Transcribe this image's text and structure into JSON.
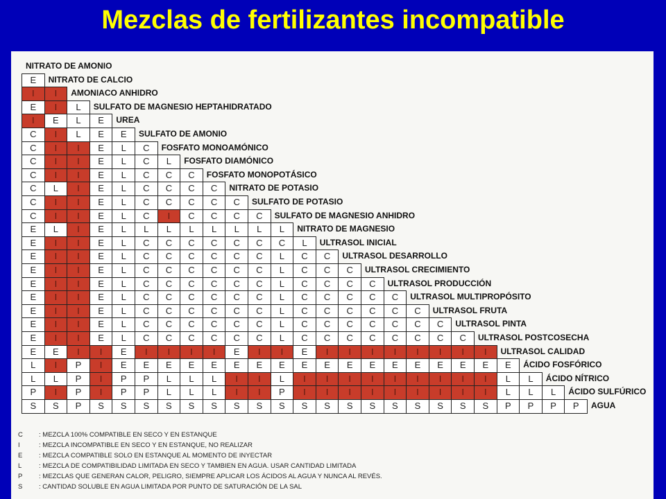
{
  "title": "Mezclas de fertilizantes incompatible",
  "labels": [
    "NITRATO DE AMONIO",
    "NITRATO DE CALCIO",
    "AMONIACO ANHIDRO",
    "SULFATO DE MAGNESIO HEPTAHIDRATADO",
    "UREA",
    "SULFATO DE AMONIO",
    "FOSFATO MONOAMÓNICO",
    "FOSFATO DIAMÓNICO",
    "FOSFATO MONOPOTÁSICO",
    "NITRATO DE POTASIO",
    "SULFATO DE POTASIO",
    "SULFATO DE MAGNESIO ANHIDRO",
    "NITRATO DE MAGNESIO",
    "ULTRASOL INICIAL",
    "ULTRASOL DESARROLLO",
    "ULTRASOL CRECIMIENTO",
    "ULTRASOL PRODUCCIÓN",
    "ULTRASOL MULTIPROPÓSITO",
    "ULTRASOL FRUTA",
    "ULTRASOL PINTA",
    "ULTRASOL POSTCOSECHA",
    "ULTRASOL CALIDAD",
    "ÁCIDO FOSFÓRICO",
    "ÁCIDO NÍTRICO",
    "ÁCIDO SULFÚRICO",
    "AGUA"
  ],
  "rows": [
    [],
    [
      "E"
    ],
    [
      "I",
      "I"
    ],
    [
      "E",
      "I",
      "L"
    ],
    [
      "I",
      "E",
      "L",
      "E"
    ],
    [
      "C",
      "I",
      "L",
      "E",
      "E"
    ],
    [
      "C",
      "I",
      "I",
      "E",
      "L",
      "C"
    ],
    [
      "C",
      "I",
      "I",
      "E",
      "L",
      "C",
      "L"
    ],
    [
      "C",
      "I",
      "I",
      "E",
      "L",
      "C",
      "C",
      "C"
    ],
    [
      "C",
      "L",
      "I",
      "E",
      "L",
      "C",
      "C",
      "C",
      "C"
    ],
    [
      "C",
      "I",
      "I",
      "E",
      "L",
      "C",
      "C",
      "C",
      "C",
      "C"
    ],
    [
      "C",
      "I",
      "I",
      "E",
      "L",
      "C",
      "I",
      "C",
      "C",
      "C",
      "C"
    ],
    [
      "E",
      "L",
      "I",
      "E",
      "L",
      "L",
      "L",
      "L",
      "L",
      "L",
      "L",
      "L"
    ],
    [
      "E",
      "I",
      "I",
      "E",
      "L",
      "C",
      "C",
      "C",
      "C",
      "C",
      "C",
      "C",
      "L"
    ],
    [
      "E",
      "I",
      "I",
      "E",
      "L",
      "C",
      "C",
      "C",
      "C",
      "C",
      "C",
      "L",
      "C",
      "C"
    ],
    [
      "E",
      "I",
      "I",
      "E",
      "L",
      "C",
      "C",
      "C",
      "C",
      "C",
      "C",
      "L",
      "C",
      "C",
      "C"
    ],
    [
      "E",
      "I",
      "I",
      "E",
      "L",
      "C",
      "C",
      "C",
      "C",
      "C",
      "C",
      "L",
      "C",
      "C",
      "C",
      "C"
    ],
    [
      "E",
      "I",
      "I",
      "E",
      "L",
      "C",
      "C",
      "C",
      "C",
      "C",
      "C",
      "L",
      "C",
      "C",
      "C",
      "C",
      "C"
    ],
    [
      "E",
      "I",
      "I",
      "E",
      "L",
      "C",
      "C",
      "C",
      "C",
      "C",
      "C",
      "L",
      "C",
      "C",
      "C",
      "C",
      "C",
      "C"
    ],
    [
      "E",
      "I",
      "I",
      "E",
      "L",
      "C",
      "C",
      "C",
      "C",
      "C",
      "C",
      "L",
      "C",
      "C",
      "C",
      "C",
      "C",
      "C",
      "C"
    ],
    [
      "E",
      "I",
      "I",
      "E",
      "L",
      "C",
      "C",
      "C",
      "C",
      "C",
      "C",
      "L",
      "C",
      "C",
      "C",
      "C",
      "C",
      "C",
      "C",
      "C"
    ],
    [
      "E",
      "E",
      "I",
      "I",
      "E",
      "I",
      "I",
      "I",
      "I",
      "E",
      "I",
      "I",
      "E",
      "I",
      "I",
      "I",
      "I",
      "I",
      "I",
      "I",
      "I"
    ],
    [
      "L",
      "I",
      "P",
      "I",
      "E",
      "E",
      "E",
      "E",
      "E",
      "E",
      "E",
      "E",
      "E",
      "E",
      "E",
      "E",
      "E",
      "E",
      "E",
      "E",
      "E",
      "E"
    ],
    [
      "L",
      "L",
      "P",
      "I",
      "P",
      "P",
      "L",
      "L",
      "L",
      "I",
      "I",
      "L",
      "I",
      "I",
      "I",
      "I",
      "I",
      "I",
      "I",
      "I",
      "I",
      "L",
      "L"
    ],
    [
      "P",
      "I",
      "P",
      "I",
      "P",
      "P",
      "L",
      "L",
      "L",
      "I",
      "I",
      "P",
      "I",
      "I",
      "I",
      "I",
      "I",
      "I",
      "I",
      "I",
      "I",
      "L",
      "L",
      "L"
    ],
    [
      "S",
      "S",
      "P",
      "S",
      "S",
      "S",
      "S",
      "S",
      "S",
      "S",
      "S",
      "S",
      "S",
      "S",
      "S",
      "S",
      "S",
      "S",
      "S",
      "S",
      "S",
      "P",
      "P",
      "P",
      "P"
    ]
  ],
  "legend": [
    {
      "code": "C",
      "text": ": MEZCLA 100% COMPATIBLE EN SECO Y EN ESTANQUE"
    },
    {
      "code": "I",
      "text": ": MEZCLA INCOMPATIBLE EN SECO Y EN ESTANQUE, NO REALIZAR"
    },
    {
      "code": "E",
      "text": ": MEZCLA COMPATIBLE SOLO EN ESTANQUE AL MOMENTO DE INYECTAR"
    },
    {
      "code": "L",
      "text": ": MEZCLA DE COMPATIBILIDAD LIMITADA EN SECO Y TAMBIEN EN AGUA. USAR CANTIDAD LIMITADA"
    },
    {
      "code": "P",
      "text": ": MEZCLAS QUE GENERAN CALOR, PELIGRO, SIEMPRE APLICAR LOS ÁCIDOS AL AGUA Y NUNCA AL REVÉS."
    },
    {
      "code": "S",
      "text": ": CANTIDAD SOLUBLE EN AGUA LIMITADA POR PUNTO DE SATURACIÓN DE LA SAL"
    }
  ]
}
